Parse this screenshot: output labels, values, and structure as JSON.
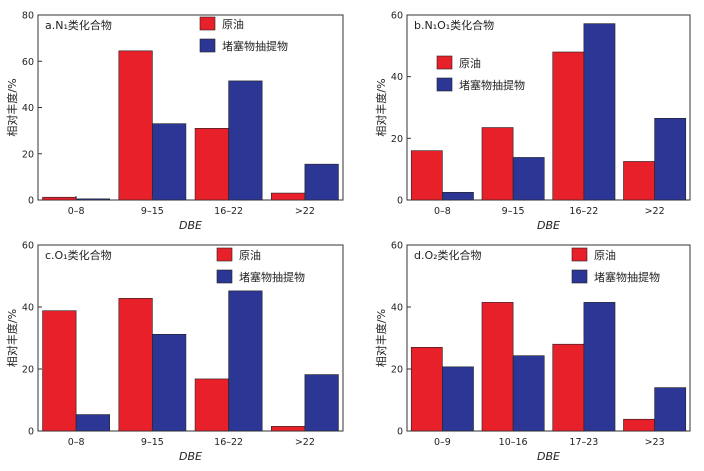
{
  "colors": {
    "crude_oil": "#e8202a",
    "plug_extract": "#2b3695"
  },
  "chart_data": [
    {
      "type": "bar",
      "title": "a.N₁类化合物",
      "xlabel": "DBE",
      "ylabel": "相对丰度/%",
      "categories": [
        "0–8",
        "9–15",
        "16–22",
        ">22"
      ],
      "ylim": [
        0,
        80
      ],
      "yticks": [
        0,
        20,
        40,
        60,
        80
      ],
      "legend_position": "top-right",
      "series": [
        {
          "name": "原油",
          "values": [
            1.2,
            64.5,
            31.0,
            3.0
          ]
        },
        {
          "name": "堵塞物抽提物",
          "values": [
            0.5,
            33.0,
            51.5,
            15.5
          ]
        }
      ]
    },
    {
      "type": "bar",
      "title": "b.N₁O₁类化合物",
      "xlabel": "DBE",
      "ylabel": "相对丰度/%",
      "categories": [
        "0–8",
        "9–15",
        "16–22",
        ">22"
      ],
      "ylim": [
        0,
        60
      ],
      "yticks": [
        0,
        20,
        40,
        60
      ],
      "legend_position": "top-left",
      "series": [
        {
          "name": "原油",
          "values": [
            16.0,
            23.5,
            48.0,
            12.5
          ]
        },
        {
          "name": "堵塞物抽提物",
          "values": [
            2.5,
            13.8,
            57.2,
            26.5
          ]
        }
      ]
    },
    {
      "type": "bar",
      "title": "c.O₁类化合物",
      "xlabel": "DBE",
      "ylabel": "相对丰度/%",
      "categories": [
        "0–8",
        "9–15",
        "16–22",
        ">22"
      ],
      "ylim": [
        0,
        60
      ],
      "yticks": [
        0,
        20,
        40,
        60
      ],
      "legend_position": "top-right",
      "series": [
        {
          "name": "原油",
          "values": [
            38.8,
            42.8,
            16.8,
            1.5
          ]
        },
        {
          "name": "堵塞物抽提物",
          "values": [
            5.3,
            31.2,
            45.2,
            18.2
          ]
        }
      ]
    },
    {
      "type": "bar",
      "title": "d.O₂类化合物",
      "xlabel": "DBE",
      "ylabel": "相对丰度/%",
      "categories": [
        "0–9",
        "10–16",
        "17–23",
        ">23"
      ],
      "ylim": [
        0,
        60
      ],
      "yticks": [
        0,
        20,
        40,
        60
      ],
      "legend_position": "top-right",
      "series": [
        {
          "name": "原油",
          "values": [
            27.0,
            41.5,
            28.0,
            3.8
          ]
        },
        {
          "name": "堵塞物抽提物",
          "values": [
            20.7,
            24.3,
            41.5,
            14.0
          ]
        }
      ]
    }
  ]
}
